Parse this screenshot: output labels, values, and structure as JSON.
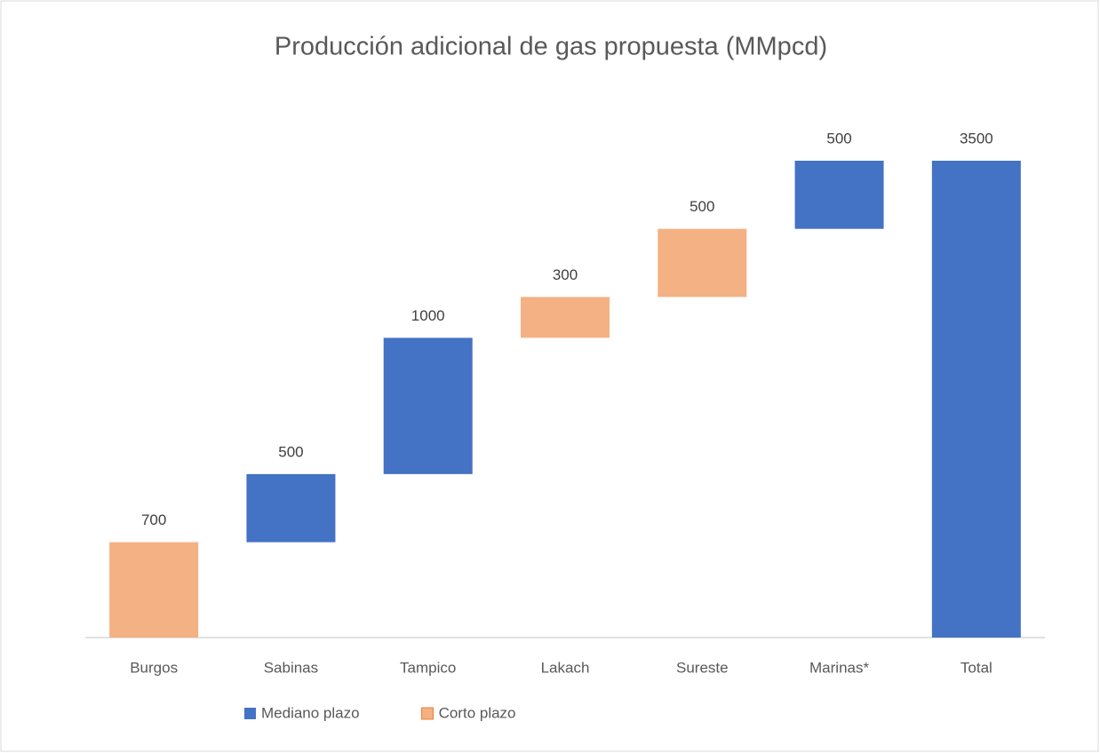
{
  "chart_data": {
    "type": "waterfall",
    "title": "Producción adicional de gas propuesta (MMpcd)",
    "categories": [
      "Burgos",
      "Sabinas",
      "Tampico",
      "Lakach",
      "Sureste",
      "Marinas*",
      "Total"
    ],
    "series": [
      {
        "name": "Mediano plazo",
        "color": "#4472c4",
        "values": [
          null,
          500,
          1000,
          null,
          null,
          500,
          3500
        ]
      },
      {
        "name": "Corto plazo",
        "color": "#f4b183",
        "values": [
          700,
          null,
          null,
          300,
          500,
          null,
          null
        ]
      }
    ],
    "ylim": [
      0,
      3500
    ],
    "legend": "bottom"
  }
}
